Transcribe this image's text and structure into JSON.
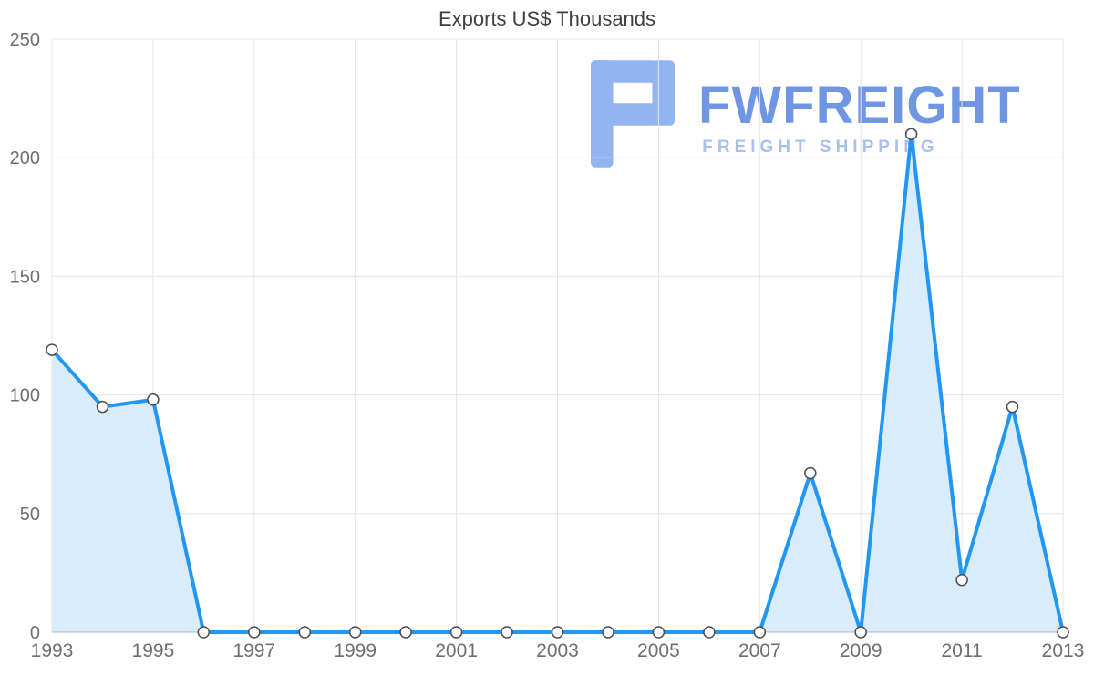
{
  "watermark": {
    "brand": "FWFREIGHT",
    "tagline": "FREIGHT SHIPPING",
    "brand_color": "#6f95e3",
    "tagline_color": "#a9c0ee",
    "logo_color": "#92b4f0"
  },
  "chart_data": {
    "type": "area",
    "title": "Exports US$ Thousands",
    "x": [
      1993,
      1994,
      1995,
      1996,
      1997,
      1998,
      1999,
      2000,
      2001,
      2002,
      2003,
      2004,
      2005,
      2006,
      2007,
      2008,
      2009,
      2010,
      2011,
      2012,
      2013
    ],
    "values": [
      119,
      95,
      98,
      0,
      0,
      0,
      0,
      0,
      0,
      0,
      0,
      0,
      0,
      0,
      0,
      67,
      0,
      210,
      22,
      95,
      0
    ],
    "x_ticks": [
      1993,
      1995,
      1997,
      1999,
      2001,
      2003,
      2005,
      2007,
      2009,
      2011,
      2013
    ],
    "y_ticks": [
      0,
      50,
      100,
      150,
      200,
      250
    ],
    "ylim": [
      0,
      250
    ],
    "grid": true,
    "legend": "none",
    "xlabel": "",
    "ylabel": "",
    "line_color": "#2196f3",
    "fill_color": "#d9ecfc",
    "marker_fill": "#ffffff",
    "marker_stroke": "#4d4d4d",
    "axis_color": "#b3b3b3",
    "grid_color": "#e4e4e4",
    "label_color": "#6e6e6e"
  }
}
